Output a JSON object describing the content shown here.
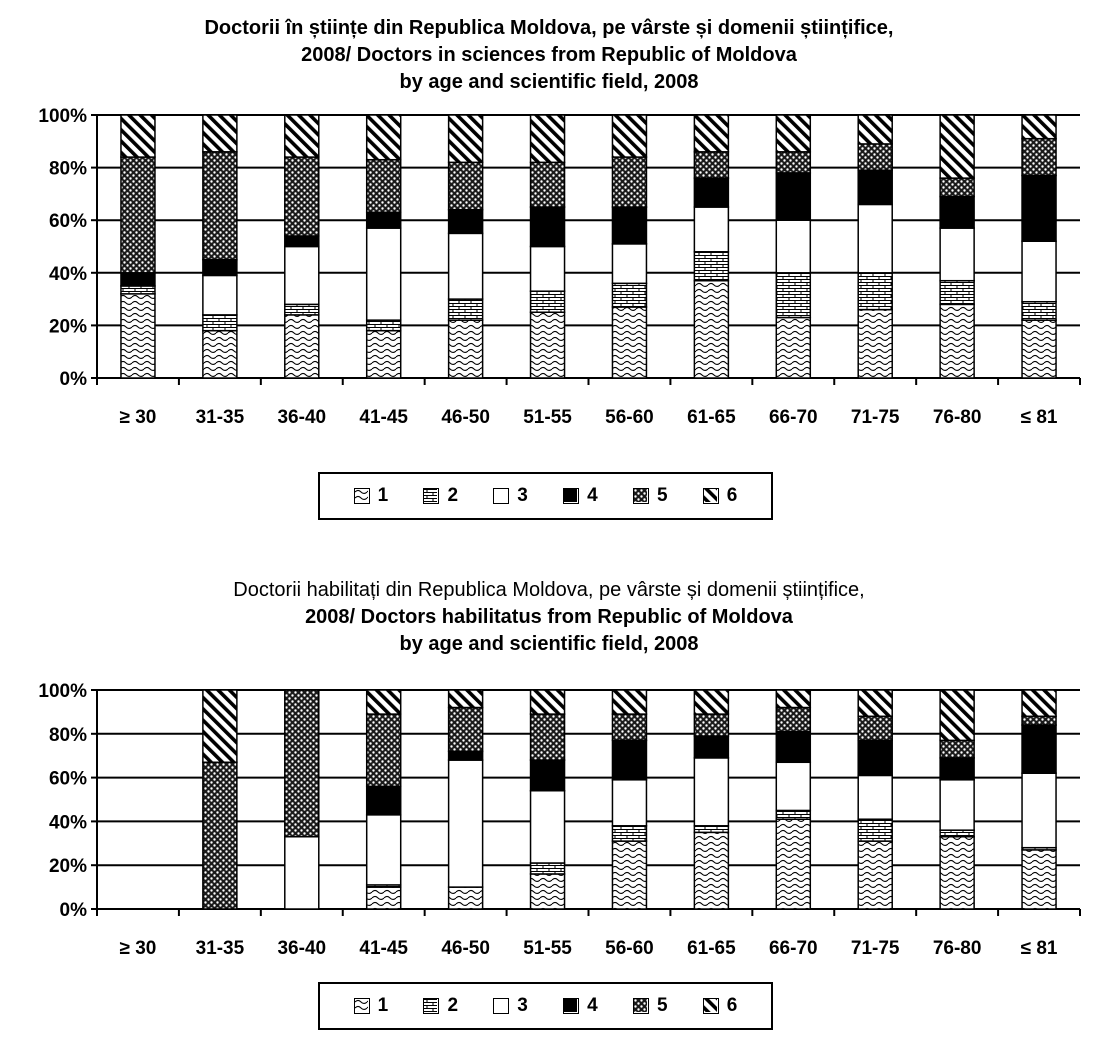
{
  "colors": {
    "ink": "#000000",
    "paper": "#ffffff"
  },
  "legend_labels": [
    "1",
    "2",
    "3",
    "4",
    "5",
    "6"
  ],
  "chart_data": [
    {
      "type": "bar",
      "stacked": "percent",
      "title_line1": "Doctorii în științe din Republica Moldova, pe vârste și domenii științifice,",
      "title_line2": "2008/ Doctors in sciences from Republic of Moldova",
      "title_line3": "by age and scientific field, 2008",
      "categories": [
        "≥ 30",
        "31-35",
        "36-40",
        "41-45",
        "46-50",
        "51-55",
        "56-60",
        "61-65",
        "66-70",
        "71-75",
        "76-80",
        "≤ 81"
      ],
      "yticks": [
        "0%",
        "20%",
        "40%",
        "60%",
        "80%",
        "100%"
      ],
      "ylim": [
        0,
        100
      ],
      "grid": true,
      "legend_position": "bottom",
      "series": [
        {
          "name": "1",
          "pattern": "wave",
          "values": [
            32,
            18,
            24,
            18,
            22,
            25,
            27,
            37,
            23,
            26,
            28,
            22
          ]
        },
        {
          "name": "2",
          "pattern": "brick",
          "values": [
            3,
            6,
            4,
            4,
            8,
            8,
            9,
            11,
            17,
            14,
            9,
            7
          ]
        },
        {
          "name": "3",
          "pattern": "white",
          "values": [
            0,
            15,
            22,
            35,
            25,
            17,
            15,
            17,
            20,
            26,
            20,
            23
          ]
        },
        {
          "name": "4",
          "pattern": "black",
          "values": [
            5,
            6,
            4,
            6,
            9,
            15,
            14,
            11,
            18,
            13,
            12,
            25
          ]
        },
        {
          "name": "5",
          "pattern": "dots",
          "values": [
            44,
            41,
            30,
            20,
            18,
            17,
            19,
            10,
            8,
            10,
            7,
            14
          ]
        },
        {
          "name": "6",
          "pattern": "hatch",
          "values": [
            16,
            14,
            16,
            17,
            18,
            18,
            16,
            14,
            14,
            11,
            24,
            9
          ]
        }
      ]
    },
    {
      "type": "bar",
      "stacked": "percent",
      "title_line1": "Doctorii habilitați din Republica Moldova, pe vârste și domenii științifice,",
      "title_line2": "2008/ Doctors habilitatus from Republic of Moldova",
      "title_line3": "by age and scientific field, 2008",
      "categories": [
        "≥ 30",
        "31-35",
        "36-40",
        "41-45",
        "46-50",
        "51-55",
        "56-60",
        "61-65",
        "66-70",
        "71-75",
        "76-80",
        "≤ 81"
      ],
      "yticks": [
        "0%",
        "20%",
        "40%",
        "60%",
        "80%",
        "100%"
      ],
      "ylim": [
        0,
        100
      ],
      "grid": true,
      "legend_position": "bottom",
      "series": [
        {
          "name": "1",
          "pattern": "wave",
          "values": [
            0,
            0,
            0,
            10,
            10,
            16,
            31,
            35,
            41,
            31,
            33,
            27
          ]
        },
        {
          "name": "2",
          "pattern": "brick",
          "values": [
            0,
            0,
            0,
            1,
            0,
            5,
            7,
            3,
            4,
            10,
            3,
            1
          ]
        },
        {
          "name": "3",
          "pattern": "white",
          "values": [
            0,
            0,
            33,
            32,
            58,
            33,
            21,
            31,
            22,
            20,
            23,
            34
          ]
        },
        {
          "name": "4",
          "pattern": "black",
          "values": [
            0,
            0,
            0,
            13,
            4,
            14,
            18,
            10,
            14,
            16,
            10,
            22
          ]
        },
        {
          "name": "5",
          "pattern": "dots",
          "values": [
            0,
            67,
            67,
            33,
            20,
            21,
            12,
            10,
            11,
            11,
            8,
            4
          ]
        },
        {
          "name": "6",
          "pattern": "hatch",
          "values": [
            0,
            33,
            0,
            11,
            8,
            11,
            11,
            11,
            8,
            12,
            23,
            12
          ]
        }
      ]
    }
  ]
}
